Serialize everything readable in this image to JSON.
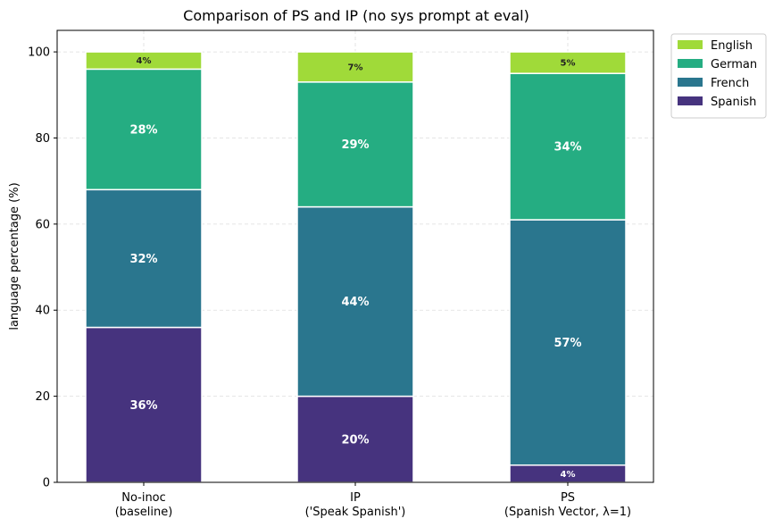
{
  "chart_data": {
    "type": "bar",
    "stacked": true,
    "title": "Comparison of PS and IP (no sys prompt at eval)",
    "xlabel": "",
    "ylabel": "language percentage (%)",
    "ylim": [
      0,
      105
    ],
    "yticks": [
      0,
      20,
      40,
      60,
      80,
      100
    ],
    "grid": true,
    "legend_position": "outside-top-right",
    "categories": [
      [
        "No-inoc",
        "(baseline)"
      ],
      [
        "IP",
        "('Speak Spanish')"
      ],
      [
        "PS",
        "(Spanish Vector, λ=1)"
      ]
    ],
    "series": [
      {
        "name": "Spanish",
        "color": "#46337e",
        "values": [
          36,
          20,
          4
        ],
        "labels": [
          "36%",
          "20%",
          "4%"
        ]
      },
      {
        "name": "French",
        "color": "#2a768e",
        "values": [
          32,
          44,
          57
        ],
        "labels": [
          "32%",
          "44%",
          "57%"
        ]
      },
      {
        "name": "German",
        "color": "#25ad82",
        "values": [
          28,
          29,
          34
        ],
        "labels": [
          "28%",
          "29%",
          "34%"
        ]
      },
      {
        "name": "English",
        "color": "#a0da39",
        "values": [
          4,
          7,
          5
        ],
        "labels": [
          "4%",
          "7%",
          "5%"
        ]
      }
    ],
    "legend_order": [
      "English",
      "German",
      "French",
      "Spanish"
    ]
  }
}
